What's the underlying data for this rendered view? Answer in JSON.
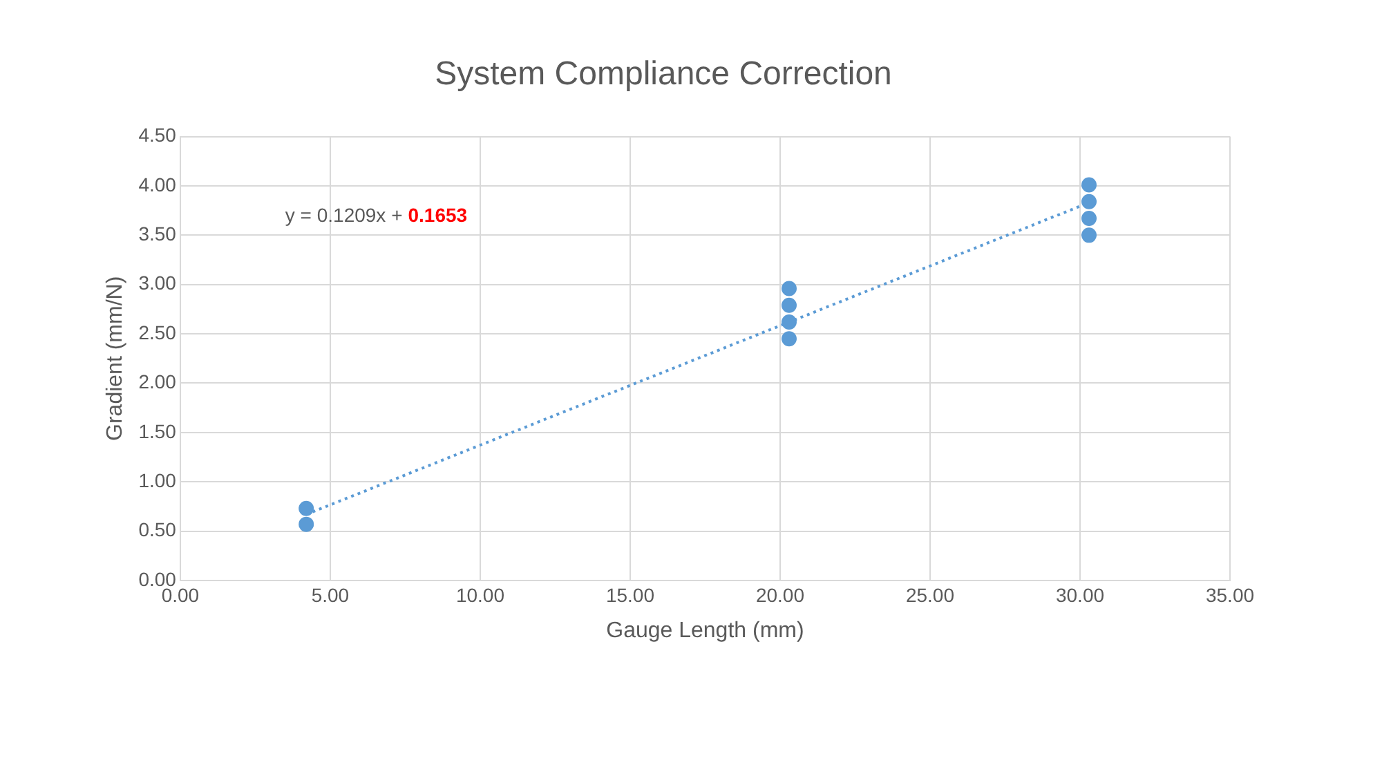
{
  "chart_data": {
    "type": "scatter",
    "title": "System Compliance Correction",
    "xlabel": "Gauge Length (mm)",
    "ylabel": "Gradient (mm/N)",
    "series": [
      {
        "color": "#5b9bd5",
        "x": [
          4.2,
          4.2,
          20.3,
          20.3,
          20.3,
          20.3,
          30.3,
          30.3,
          30.3,
          30.3
        ],
        "values": [
          0.57,
          0.73,
          2.45,
          2.62,
          2.79,
          2.96,
          3.5,
          3.67,
          3.84,
          4.01
        ],
        "marker": "circle"
      },
      {
        "type": "line",
        "color": "#5b9bd5",
        "x": [
          4.2,
          30.3
        ],
        "values": [
          0.67,
          3.83
        ],
        "line_style": "dotted",
        "marker": "none"
      }
    ],
    "xlim": [
      0,
      35
    ],
    "xticks": [
      {
        "value": 0,
        "label": "0.00"
      },
      {
        "value": 5,
        "label": "5.00"
      },
      {
        "value": 10,
        "label": "10.00"
      },
      {
        "value": 15,
        "label": "15.00"
      },
      {
        "value": 20,
        "label": "20.00"
      },
      {
        "value": 25,
        "label": "25.00"
      },
      {
        "value": 30,
        "label": "30.00"
      },
      {
        "value": 35,
        "label": "35.00"
      }
    ],
    "ylim": [
      0,
      4.5
    ],
    "yticks": [
      {
        "value": 0,
        "label": "0.00"
      },
      {
        "value": 0.5,
        "label": "0.50"
      },
      {
        "value": 1,
        "label": "1.00"
      },
      {
        "value": 1.5,
        "label": "1.50"
      },
      {
        "value": 2,
        "label": "2.00"
      },
      {
        "value": 2.5,
        "label": "2.50"
      },
      {
        "value": 3,
        "label": "3.00"
      },
      {
        "value": 3.5,
        "label": "3.50"
      },
      {
        "value": 4,
        "label": "4.00"
      },
      {
        "value": 4.5,
        "label": "4.50"
      }
    ],
    "grid": true,
    "legend": false,
    "annotations": [
      "y = 0.1209x +",
      "0.1653"
    ]
  }
}
